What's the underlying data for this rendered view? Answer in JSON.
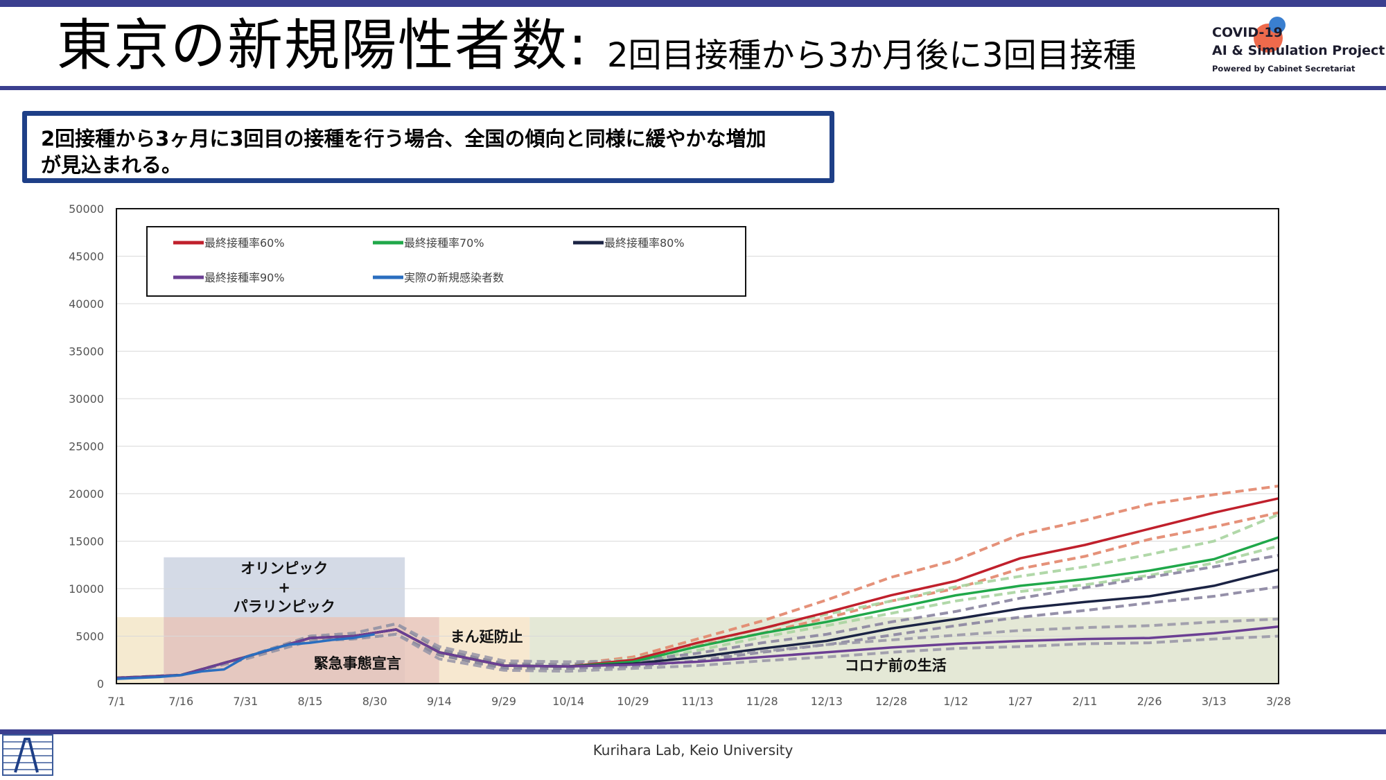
{
  "header": {
    "title": "東京の新規陽性者数:",
    "subtitle": "2回目接種から3か月後に3回目接種",
    "logo_line1": "COVID-19",
    "logo_line2": "AI & Simulation Project",
    "logo_line3": "Powered by Cabinet Secretariat"
  },
  "message": {
    "line1": "2回接種から3ヶ月に3回目の接種を行う場合、全国の傾向と同様に緩やかな増加",
    "line2": "が見込まれる。"
  },
  "footer": {
    "text": "Kurihara Lab, Keio University"
  },
  "colors": {
    "brand": "#3b3f8f",
    "box_border": "#1e3f87",
    "olympic_shade": "#cdd3e2",
    "emergency_shade": "#e7c4b8",
    "mambo_shade": "#f6e4c8",
    "normal_shade": "#dfe4cf",
    "pre_shade": "#f3e6c8"
  },
  "chart_data": {
    "type": "line",
    "x_ticks": [
      "7/1",
      "7/16",
      "7/31",
      "8/15",
      "8/30",
      "9/14",
      "9/29",
      "10/14",
      "10/29",
      "11/13",
      "11/28",
      "12/13",
      "12/28",
      "1/12",
      "1/27",
      "2/11",
      "2/26",
      "3/13",
      "3/28"
    ],
    "ylim": [
      0,
      50000
    ],
    "y_ticks": [
      0,
      5000,
      10000,
      15000,
      20000,
      25000,
      30000,
      35000,
      40000,
      45000,
      50000
    ],
    "grid": "horizontal",
    "legend_placement": "top-left",
    "annotations": [
      {
        "text": "オリンピック",
        "day": 39
      },
      {
        "text": "+",
        "day": 39
      },
      {
        "text": "パラリンピック",
        "day": 39
      },
      {
        "text": "まん延防止",
        "day": 86
      },
      {
        "text": "緊急事態宣言",
        "day": 56
      },
      {
        "text": "コロナ前の生活",
        "day": 181
      }
    ],
    "periods": [
      {
        "name": "pre",
        "from": 0,
        "to": 11,
        "ymax": 7000,
        "color": "#f3e6c8"
      },
      {
        "name": "olympic",
        "from": 11,
        "to": 67,
        "ymax": 13300,
        "color": "#cdd3e2"
      },
      {
        "name": "emergency",
        "from": 11,
        "to": 75,
        "ymax": 7000,
        "color": "#e7c4b8"
      },
      {
        "name": "mambo",
        "from": 75,
        "to": 96,
        "ymax": 7000,
        "color": "#f6e4c8"
      },
      {
        "name": "normal",
        "from": 96,
        "to": 270,
        "ymax": 7000,
        "color": "#dfe4cf"
      }
    ],
    "series": [
      {
        "name": "最終接種率60%",
        "color": "#c0202c",
        "x": [
          0,
          15,
          30,
          45,
          55,
          65,
          75,
          90,
          105,
          120,
          135,
          150,
          165,
          180,
          195,
          210,
          225,
          240,
          255,
          270
        ],
        "y": [
          600,
          900,
          2800,
          4800,
          5000,
          5700,
          3300,
          1900,
          1800,
          2500,
          4300,
          5800,
          7500,
          9300,
          10800,
          13200,
          14600,
          16300,
          18000,
          19500
        ]
      },
      {
        "name": "最終接種率70%",
        "color": "#20a84a",
        "x": [
          0,
          15,
          30,
          45,
          55,
          65,
          75,
          90,
          105,
          120,
          135,
          150,
          165,
          180,
          195,
          210,
          225,
          240,
          255,
          270
        ],
        "y": [
          600,
          900,
          2800,
          4800,
          5000,
          5700,
          3300,
          1900,
          1800,
          2300,
          3900,
          5300,
          6500,
          7900,
          9300,
          10300,
          11000,
          11900,
          13100,
          15400
        ]
      },
      {
        "name": "最終接種率80%",
        "color": "#1b2344",
        "x": [
          0,
          15,
          30,
          45,
          55,
          65,
          75,
          90,
          105,
          120,
          135,
          150,
          165,
          180,
          195,
          210,
          225,
          240,
          255,
          270
        ],
        "y": [
          600,
          900,
          2800,
          4800,
          5000,
          5700,
          3300,
          1900,
          1800,
          2100,
          2800,
          3700,
          4500,
          5800,
          6800,
          7900,
          8600,
          9200,
          10300,
          12000
        ]
      },
      {
        "name": "最終接種率90%",
        "color": "#6b3f93",
        "x": [
          0,
          15,
          30,
          45,
          55,
          65,
          75,
          90,
          105,
          120,
          135,
          150,
          165,
          180,
          195,
          210,
          225,
          240,
          255,
          270
        ],
        "y": [
          600,
          900,
          2800,
          4800,
          5000,
          5700,
          3300,
          1900,
          1800,
          2000,
          2300,
          2800,
          3300,
          3800,
          4200,
          4500,
          4700,
          4800,
          5300,
          6000
        ]
      },
      {
        "name": "実際の新規感染者数",
        "color": "#2a6ebf",
        "x": [
          0,
          5,
          10,
          15,
          20,
          25,
          30,
          35,
          40,
          45,
          50,
          55,
          60
        ],
        "y": [
          500,
          600,
          700,
          900,
          1300,
          1500,
          2800,
          3500,
          4100,
          4300,
          4600,
          4800,
          5200
        ]
      }
    ],
    "bands": [
      {
        "color": "#e2856a",
        "lower": [
          600,
          900,
          2600,
          4500,
          4700,
          5200,
          3000,
          1600,
          1600,
          2300,
          4000,
          5300,
          6900,
          8700,
          10000,
          12100,
          13400,
          15200,
          16500,
          18000
        ],
        "upper": [
          600,
          900,
          2800,
          5000,
          5300,
          6300,
          3600,
          2100,
          2000,
          2800,
          4700,
          6600,
          8800,
          11200,
          13000,
          15700,
          17200,
          18900,
          19900,
          20800
        ]
      },
      {
        "color": "#a8d4a0",
        "lower": [
          600,
          900,
          2600,
          4500,
          4700,
          5200,
          3000,
          1600,
          1600,
          2100,
          3500,
          4900,
          6100,
          7400,
          8700,
          9700,
          10400,
          11400,
          12700,
          14500
        ],
        "upper": [
          600,
          900,
          2800,
          5000,
          5300,
          6300,
          3600,
          2100,
          2000,
          2600,
          4200,
          5800,
          7300,
          8700,
          10200,
          11300,
          12300,
          13600,
          15000,
          17800
        ]
      },
      {
        "color": "#8a84a0",
        "lower": [
          600,
          900,
          2600,
          4500,
          4700,
          5200,
          3000,
          1600,
          1600,
          1800,
          2400,
          3300,
          4100,
          5100,
          6100,
          7000,
          7700,
          8500,
          9200,
          10200
        ],
        "upper": [
          600,
          900,
          2800,
          5000,
          5300,
          6300,
          3600,
          2100,
          2000,
          2400,
          3200,
          4300,
          5200,
          6500,
          7600,
          9000,
          10100,
          11200,
          12300,
          13500
        ]
      },
      {
        "color": "#9a98a8",
        "lower": [
          600,
          900,
          2600,
          4500,
          4700,
          5200,
          2600,
          1400,
          1300,
          1600,
          1900,
          2400,
          2800,
          3300,
          3700,
          3900,
          4200,
          4300,
          4700,
          5000
        ],
        "upper": [
          600,
          900,
          2800,
          5000,
          5300,
          6300,
          3900,
          2400,
          2300,
          2400,
          2800,
          3400,
          4100,
          4600,
          5100,
          5600,
          5900,
          6100,
          6500,
          6800
        ]
      }
    ]
  }
}
